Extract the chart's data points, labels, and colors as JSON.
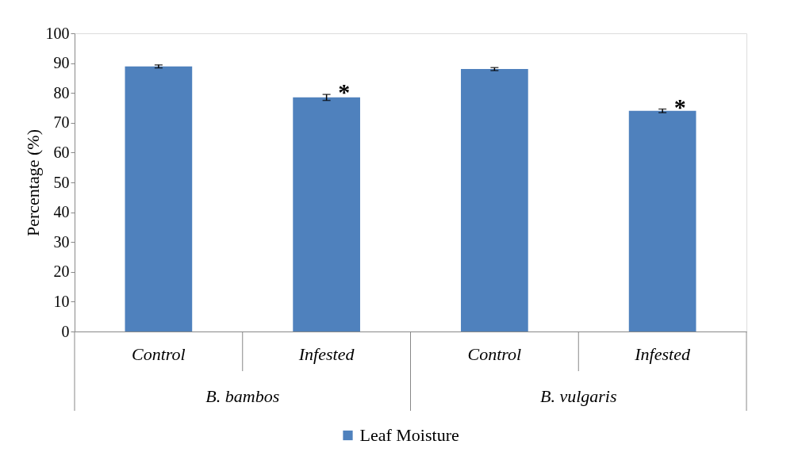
{
  "chart_data": {
    "type": "bar",
    "ylabel": "Percentage (%)",
    "categories": [
      "Control",
      "Infested",
      "Control",
      "Infested"
    ],
    "series": [
      {
        "name": "Leaf Moisture",
        "color": "#4f81bd",
        "values": [
          88.9,
          78.5,
          88.0,
          74.0
        ],
        "errors": [
          0.5,
          1.0,
          0.5,
          0.6
        ],
        "value_labels": [
          null,
          "*",
          null,
          "*"
        ]
      }
    ],
    "ylim": [
      0,
      100
    ],
    "yticks": [
      0,
      10,
      20,
      30,
      40,
      50,
      60,
      70,
      80,
      90,
      100
    ],
    "grid": false,
    "legend": "bottom",
    "annotations": [
      "B. bambos",
      "B. vulgaris"
    ]
  }
}
